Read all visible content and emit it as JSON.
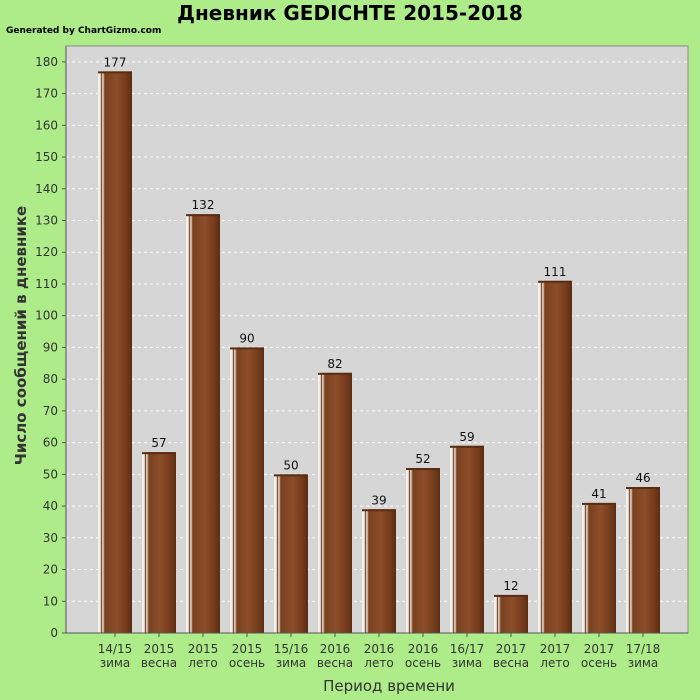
{
  "title": "Дневник GEDICHTE 2015-2018",
  "credit": "Generated by ChartGizmo.com",
  "colors": {
    "background": "#aeec8a",
    "plot_bg": "#d6d6d6",
    "bar_dark": "#6e3a1c",
    "bar_mid": "#8c4e2a",
    "text": "#333333"
  },
  "chart_data": {
    "type": "bar",
    "title": "Дневник GEDICHTE 2015-2018",
    "xlabel": "Период времени",
    "ylabel": "Число сообщений в дневнике",
    "ylim": [
      0,
      185
    ],
    "yticks": [
      0,
      10,
      20,
      30,
      40,
      50,
      60,
      70,
      80,
      90,
      100,
      110,
      120,
      130,
      140,
      150,
      160,
      170,
      180
    ],
    "grid": true,
    "legend": "none",
    "categories": [
      [
        "14/15",
        "зима"
      ],
      [
        "2015",
        "весна"
      ],
      [
        "2015",
        "лето"
      ],
      [
        "2015",
        "осень"
      ],
      [
        "15/16",
        "зима"
      ],
      [
        "2016",
        "весна"
      ],
      [
        "2016",
        "лето"
      ],
      [
        "2016",
        "осень"
      ],
      [
        "16/17",
        "зима"
      ],
      [
        "2017",
        "весна"
      ],
      [
        "2017",
        "лето"
      ],
      [
        "2017",
        "осень"
      ],
      [
        "17/18",
        "зима"
      ]
    ],
    "values": [
      177,
      57,
      132,
      90,
      50,
      82,
      39,
      52,
      59,
      12,
      111,
      41,
      46
    ]
  }
}
